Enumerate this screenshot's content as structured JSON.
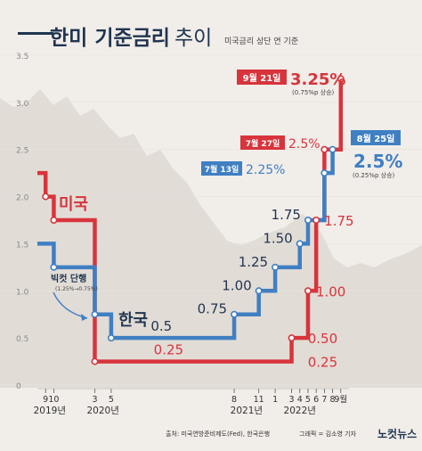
{
  "header": {
    "title": "한미 기준금리 추이",
    "title_bold": "한미 기준금리",
    "title_light": "추이",
    "subtitle": "미국금리 상단 연 기준"
  },
  "footer": {
    "source": "출처: 미국연방준비제도(Fed), 한국은행",
    "credit": "그래픽 = 김소영 기자",
    "logo": "노컷뉴스"
  },
  "colors": {
    "us": "#d8343c",
    "korea": "#3f7fc2",
    "background": "#f1ede9",
    "area": "#e2dcd6",
    "label_text": "#1f3550"
  },
  "annotations": {
    "bigcut": "빅컷 단행",
    "bigcut_sub": "(1.25%→0.75%)",
    "us_latest_date": "9월 21일",
    "us_latest_value": "3.25%",
    "us_latest_sub": "(0.75%p 상승)",
    "us_jul_date": "7월 27일",
    "us_jul_value": "2.5%",
    "kr_jul_date": "7월 13일",
    "kr_jul_value": "2.25%",
    "kr_latest_date": "8월 25일",
    "kr_latest_value": "2.5%",
    "kr_latest_sub": "(0.25%p 상승)"
  },
  "chart_data": {
    "type": "line",
    "title": "한미 기준금리 추이",
    "subtitle": "미국금리 상단 연 기준",
    "ylim": [
      0,
      3.5
    ],
    "yticks": [
      "0",
      "0.5",
      "1.0",
      "1.5",
      "2.0",
      "2.5",
      "3.0",
      "3.5"
    ],
    "xticks": [
      {
        "label": "9",
        "x": 9
      },
      {
        "label": "10",
        "x": 10
      },
      {
        "label": "3",
        "x": 15
      },
      {
        "label": "5",
        "x": 17
      },
      {
        "label": "8",
        "x": 32
      },
      {
        "label": "11",
        "x": 35
      },
      {
        "label": "1",
        "x": 37
      },
      {
        "label": "3",
        "x": 39
      },
      {
        "label": "4",
        "x": 40
      },
      {
        "label": "5",
        "x": 41
      },
      {
        "label": "6",
        "x": 42
      },
      {
        "label": "7",
        "x": 43
      },
      {
        "label": "8",
        "x": 44
      },
      {
        "label": "9월",
        "x": 45
      }
    ],
    "years": [
      {
        "label": "2019년",
        "x": 9.5
      },
      {
        "label": "2020년",
        "x": 16
      },
      {
        "label": "2021년",
        "x": 33.5
      },
      {
        "label": "2022년",
        "x": 40
      }
    ],
    "xlim": [
      8,
      46
    ],
    "series": [
      {
        "name": "미국",
        "color": "#d8343c",
        "points": [
          [
            8,
            2.25
          ],
          [
            9,
            2.0
          ],
          [
            10,
            1.75
          ],
          [
            15,
            0.25
          ],
          [
            39,
            0.5
          ],
          [
            41,
            1.0
          ],
          [
            42,
            1.75
          ],
          [
            43,
            2.5
          ],
          [
            45,
            3.25
          ]
        ],
        "labels": [
          {
            "text": "0.25",
            "x": 24,
            "v": 0.25
          },
          {
            "text": "0.25",
            "x": 40,
            "v": 0.25
          },
          {
            "text": "0.50",
            "x": 40,
            "v": 0.5
          },
          {
            "text": "1.00",
            "x": 41,
            "v": 1.0
          },
          {
            "text": "1.75",
            "x": 42,
            "v": 1.75
          }
        ]
      },
      {
        "name": "한국",
        "color": "#3f7fc2",
        "points": [
          [
            8,
            1.5
          ],
          [
            10,
            1.25
          ],
          [
            15,
            0.75
          ],
          [
            17,
            0.5
          ],
          [
            32,
            0.75
          ],
          [
            35,
            1.0
          ],
          [
            37,
            1.25
          ],
          [
            40,
            1.5
          ],
          [
            41,
            1.75
          ],
          [
            43,
            2.25
          ],
          [
            44,
            2.5
          ]
        ],
        "labels": [
          {
            "text": "0.5",
            "x": 24,
            "v": 0.5
          },
          {
            "text": "0.75",
            "x": 32,
            "v": 0.75
          },
          {
            "text": "1.00",
            "x": 35,
            "v": 1.0
          },
          {
            "text": "1.25",
            "x": 37,
            "v": 1.25
          },
          {
            "text": "1.50",
            "x": 40,
            "v": 1.5
          },
          {
            "text": "1.75",
            "x": 41,
            "v": 1.75
          }
        ]
      }
    ]
  }
}
